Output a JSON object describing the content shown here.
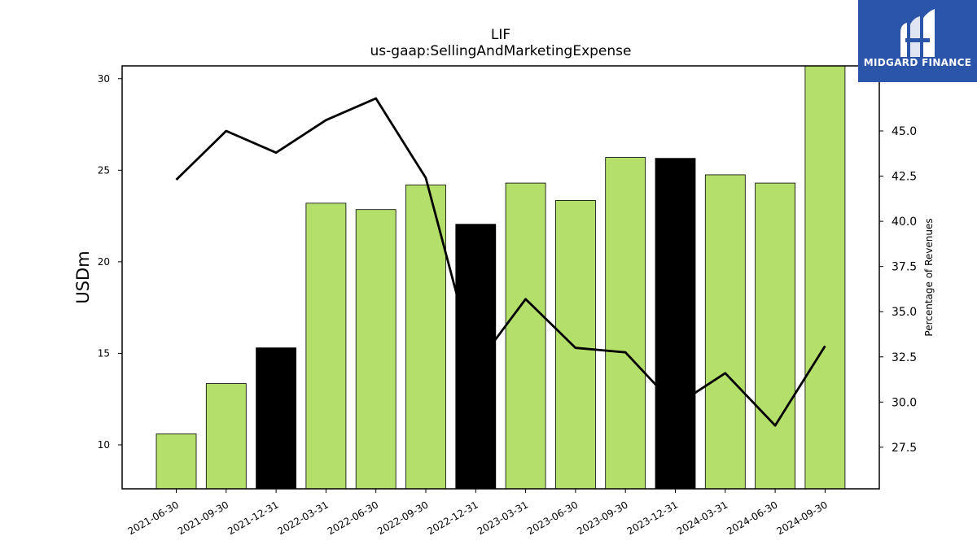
{
  "chart_data": {
    "type": "bar",
    "title": "LIF",
    "subtitle": "us-gaap:SellingAndMarketingExpense",
    "ylabel": "USDm",
    "y2label": "Percentage of Revenues",
    "categories": [
      "2021-06-30",
      "2021-09-30",
      "2021-12-31",
      "2022-03-31",
      "2022-06-30",
      "2022-09-30",
      "2022-12-31",
      "2023-03-31",
      "2023-06-30",
      "2023-09-30",
      "2023-12-31",
      "2024-03-31",
      "2024-06-30",
      "2024-09-30"
    ],
    "series": [
      {
        "values": [
          10.6,
          13.35,
          15.3,
          23.2,
          22.85,
          24.2,
          22.05,
          24.3,
          23.35,
          25.7,
          25.65,
          24.75,
          24.3,
          30.8
        ]
      },
      {
        "axis": "right",
        "values": [
          42.3,
          45.0,
          43.8,
          45.6,
          46.8,
          42.4,
          32.0,
          35.7,
          33.0,
          32.75,
          29.8,
          31.6,
          28.7,
          33.1
        ]
      }
    ],
    "bar_colors": [
      "#b4df6b",
      "#b4df6b",
      "#000000",
      "#b4df6b",
      "#b4df6b",
      "#b4df6b",
      "#000000",
      "#b4df6b",
      "#b4df6b",
      "#b4df6b",
      "#000000",
      "#b4df6b",
      "#b4df6b",
      "#b4df6b"
    ],
    "ylim": [
      7.6,
      30.7
    ],
    "y2lim": [
      25.2,
      48.6
    ],
    "yticks": [
      10,
      15,
      20,
      25,
      30
    ],
    "y2ticks": [
      "27.5",
      "30.0",
      "32.5",
      "35.0",
      "37.5",
      "40.0",
      "42.5",
      "45.0"
    ],
    "grid": false,
    "legend": "none"
  },
  "logo": {
    "text": "MIDGARD FINANCE",
    "background": "#2b55a8"
  }
}
